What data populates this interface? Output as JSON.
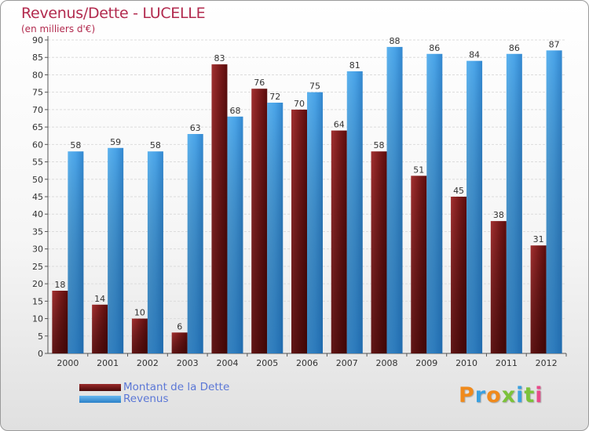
{
  "title": "Revenus/Dette - LUCELLE",
  "subtitle": "(en milliers d'€)",
  "logo": "Proxiti",
  "colors": {
    "dette": "#7a1a1a",
    "revenus": "#3a9ae0",
    "title": "#b22a4e",
    "legend_text": "#5b77d6"
  },
  "legend": [
    {
      "label": "Montant de la Dette"
    },
    {
      "label": "Revenus"
    }
  ],
  "chart_data": {
    "type": "bar",
    "title": "Revenus/Dette - LUCELLE",
    "subtitle": "(en milliers d'€)",
    "categories": [
      "2000",
      "2001",
      "2002",
      "2003",
      "2004",
      "2005",
      "2006",
      "2007",
      "2008",
      "2009",
      "2010",
      "2011",
      "2012"
    ],
    "series": [
      {
        "name": "Montant de la Dette",
        "values": [
          18,
          14,
          10,
          6,
          83,
          76,
          70,
          64,
          58,
          51,
          45,
          38,
          31
        ]
      },
      {
        "name": "Revenus",
        "values": [
          58,
          59,
          58,
          63,
          68,
          72,
          75,
          81,
          88,
          86,
          84,
          86,
          87
        ]
      }
    ],
    "ylim": [
      0,
      90
    ],
    "yticks": [
      0,
      5,
      10,
      15,
      20,
      25,
      30,
      35,
      40,
      45,
      50,
      55,
      60,
      65,
      70,
      75,
      80,
      85,
      90
    ],
    "grid": true,
    "legend_position": "bottom-left"
  }
}
